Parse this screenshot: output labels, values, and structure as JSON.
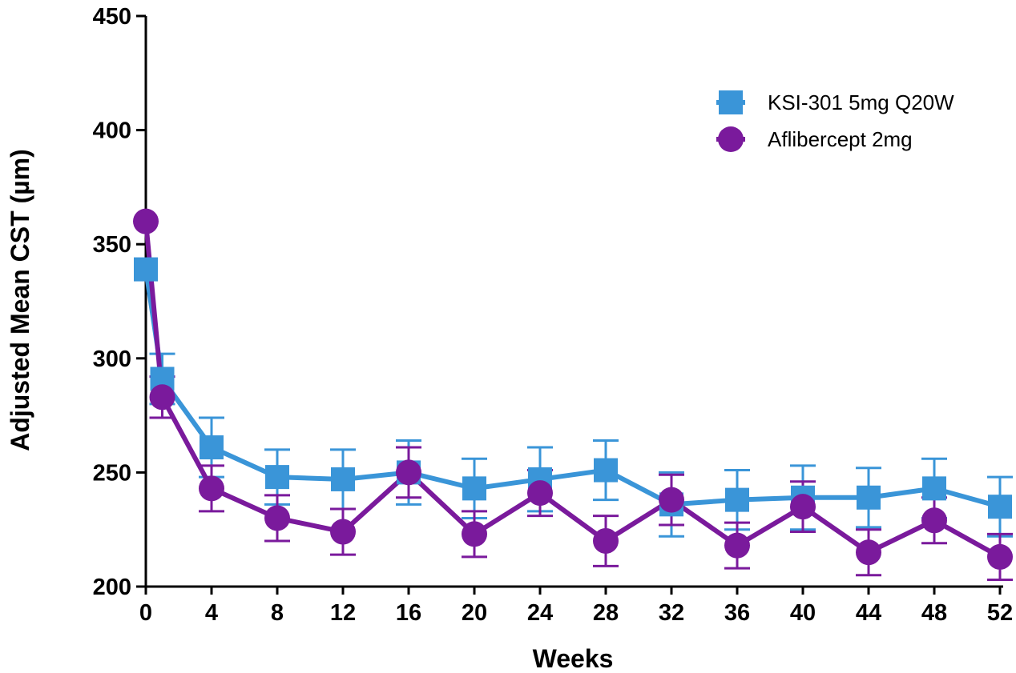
{
  "chart_data": {
    "type": "line",
    "xlabel": "Weeks",
    "ylabel": "Adjusted Mean CST (µm)",
    "xlim": [
      0,
      52
    ],
    "ylim": [
      200,
      450
    ],
    "x_ticks": [
      0,
      4,
      8,
      12,
      16,
      20,
      24,
      28,
      32,
      36,
      40,
      44,
      48,
      52
    ],
    "y_ticks": [
      200,
      250,
      300,
      350,
      400,
      450
    ],
    "grid": false,
    "legend_position": "top-right",
    "x": [
      0,
      1,
      4,
      8,
      12,
      16,
      20,
      24,
      28,
      32,
      36,
      40,
      44,
      48,
      52
    ],
    "series": [
      {
        "name": "KSI-301 5mg Q20W",
        "color": "#3a95d8",
        "marker": "square",
        "values": [
          339,
          291,
          261,
          248,
          247,
          250,
          243,
          247,
          251,
          236,
          238,
          239,
          239,
          243,
          235
        ],
        "error": [
          0,
          11,
          13,
          12,
          13,
          14,
          13,
          14,
          13,
          14,
          13,
          14,
          13,
          13,
          13
        ]
      },
      {
        "name": "Aflibercept 2mg",
        "color": "#7a1a9c",
        "marker": "circle",
        "values": [
          360,
          283,
          243,
          230,
          224,
          250,
          223,
          241,
          220,
          238,
          218,
          235,
          215,
          229,
          213
        ],
        "error": [
          0,
          9,
          10,
          10,
          10,
          11,
          10,
          10,
          11,
          11,
          10,
          11,
          10,
          10,
          10
        ]
      }
    ]
  }
}
